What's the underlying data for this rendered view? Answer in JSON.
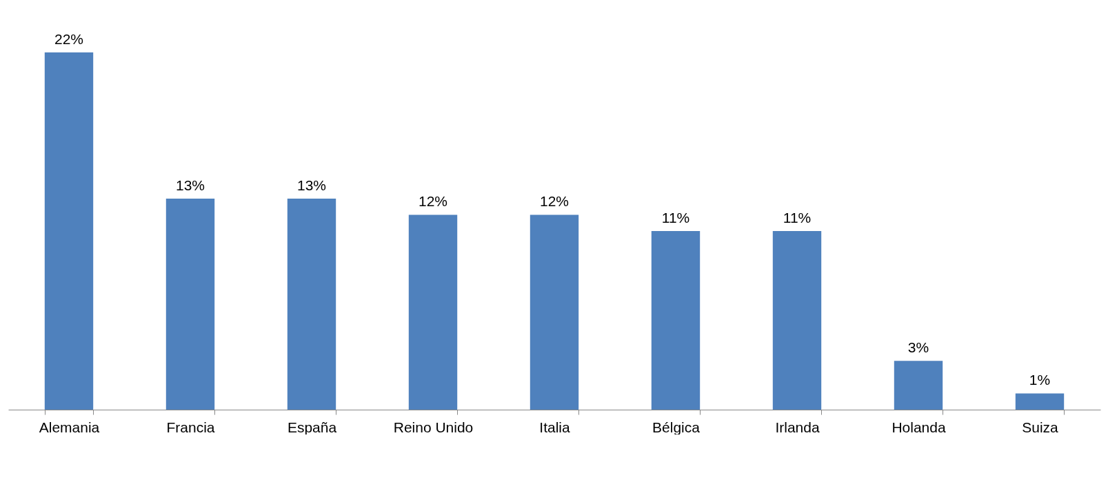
{
  "chart_data": {
    "type": "bar",
    "categories": [
      "Alemania",
      "Francia",
      "España",
      "Reino Unido",
      "Italia",
      "Bélgica",
      "Irlanda",
      "Holanda",
      "Suiza"
    ],
    "values": [
      22,
      13,
      13,
      12,
      12,
      11,
      11,
      3,
      1
    ],
    "value_labels": [
      "22%",
      "13%",
      "13%",
      "12%",
      "12%",
      "11%",
      "11%",
      "3%",
      "1%"
    ],
    "color": "#4f81bd"
  }
}
